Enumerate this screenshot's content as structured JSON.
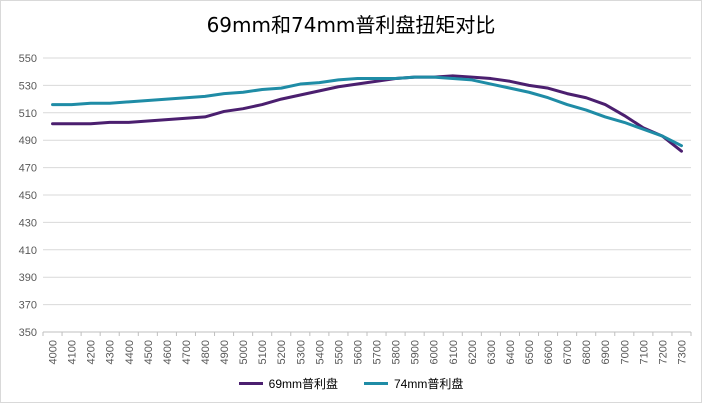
{
  "chart_data": {
    "type": "line",
    "title": "69mm和74mm普利盘扭矩对比",
    "xlabel": "",
    "ylabel": "",
    "ylim": [
      350,
      550
    ],
    "yticks": [
      350,
      370,
      390,
      410,
      430,
      450,
      470,
      490,
      510,
      530,
      550
    ],
    "grid": true,
    "legend_position": "bottom",
    "categories": [
      "4000",
      "4100",
      "4200",
      "4300",
      "4400",
      "4500",
      "4600",
      "4700",
      "4800",
      "4900",
      "5000",
      "5100",
      "5200",
      "5300",
      "5400",
      "5500",
      "5600",
      "5700",
      "5800",
      "5900",
      "6000",
      "6100",
      "6200",
      "6300",
      "6400",
      "6500",
      "6600",
      "6700",
      "6800",
      "6900",
      "7000",
      "7100",
      "7200",
      "7300"
    ],
    "series": [
      {
        "name": "69mm普利盘",
        "color": "#4b1f6f",
        "values": [
          502,
          502,
          502,
          503,
          503,
          504,
          505,
          506,
          507,
          511,
          513,
          516,
          520,
          523,
          526,
          529,
          531,
          533,
          535,
          536,
          536,
          537,
          536,
          535,
          533,
          530,
          528,
          524,
          521,
          516,
          508,
          499,
          493,
          482
        ]
      },
      {
        "name": "74mm普利盘",
        "color": "#1f8ca6",
        "values": [
          516,
          516,
          517,
          517,
          518,
          519,
          520,
          521,
          522,
          524,
          525,
          527,
          528,
          531,
          532,
          534,
          535,
          535,
          535,
          536,
          536,
          535,
          534,
          531,
          528,
          525,
          521,
          516,
          512,
          507,
          503,
          498,
          493,
          486
        ]
      }
    ]
  }
}
